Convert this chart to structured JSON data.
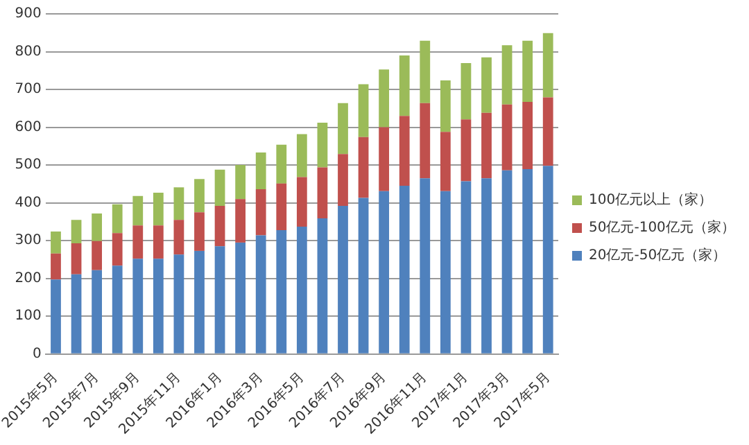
{
  "chart_data": {
    "type": "bar",
    "stacked": true,
    "categories": [
      "2015年5月",
      null,
      "2015年7月",
      null,
      "2015年9月",
      null,
      "2015年11月",
      null,
      "2016年1月",
      null,
      "2016年3月",
      null,
      "2016年5月",
      null,
      "2016年7月",
      null,
      "2016年9月",
      null,
      "2016年11月",
      null,
      "2017年1月",
      null,
      "2017年3月",
      null,
      "2017年5月"
    ],
    "series": [
      {
        "name": "20亿元-50亿元（家）",
        "color": "#4f81bd",
        "values": [
          197,
          211,
          222,
          234,
          252,
          252,
          263,
          273,
          285,
          295,
          314,
          328,
          337,
          359,
          392,
          413,
          431,
          445,
          465,
          431,
          457,
          465,
          486,
          489,
          498
        ]
      },
      {
        "name": "50亿元-100亿元（家）",
        "color": "#c0504d",
        "values": [
          69,
          82,
          77,
          86,
          88,
          88,
          92,
          102,
          107,
          115,
          122,
          123,
          131,
          135,
          137,
          161,
          169,
          185,
          199,
          157,
          164,
          173,
          174,
          178,
          181
        ]
      },
      {
        "name": "100亿元以上（家）",
        "color": "#9bbb59",
        "values": [
          58,
          62,
          73,
          76,
          78,
          87,
          86,
          88,
          96,
          90,
          97,
          103,
          114,
          118,
          135,
          140,
          153,
          160,
          165,
          136,
          149,
          147,
          157,
          162,
          170
        ]
      }
    ],
    "ylim": [
      0,
      900
    ],
    "yticks": [
      0,
      100,
      200,
      300,
      400,
      500,
      600,
      700,
      800,
      900
    ],
    "grid": "y",
    "legend": "right"
  }
}
